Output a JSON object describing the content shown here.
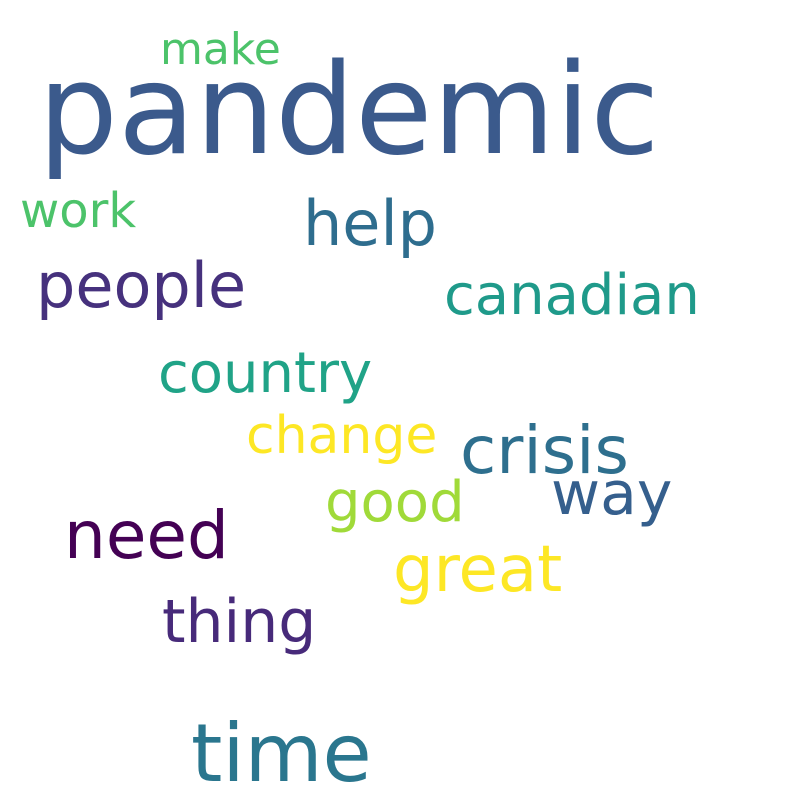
{
  "words": [
    {
      "id": "pandemic",
      "text": "pandemic",
      "color": "#3b5a8c"
    },
    {
      "id": "make",
      "text": "make",
      "color": "#4cc36a"
    },
    {
      "id": "work",
      "text": "work",
      "color": "#4cc36a"
    },
    {
      "id": "help",
      "text": "help",
      "color": "#2e6d8e"
    },
    {
      "id": "people",
      "text": "people",
      "color": "#46317d"
    },
    {
      "id": "canadian",
      "text": "canadian",
      "color": "#1f9a8a"
    },
    {
      "id": "country",
      "text": "country",
      "color": "#20a387"
    },
    {
      "id": "change",
      "text": "change",
      "color": "#fde725"
    },
    {
      "id": "crisis",
      "text": "crisis",
      "color": "#2e6f8e"
    },
    {
      "id": "way",
      "text": "way",
      "color": "#355f8d"
    },
    {
      "id": "good",
      "text": "good",
      "color": "#a0da39"
    },
    {
      "id": "need",
      "text": "need",
      "color": "#440154"
    },
    {
      "id": "great",
      "text": "great",
      "color": "#fde725"
    },
    {
      "id": "thing",
      "text": "thing",
      "color": "#472a7a"
    },
    {
      "id": "time",
      "text": "time",
      "color": "#2a768e"
    }
  ]
}
